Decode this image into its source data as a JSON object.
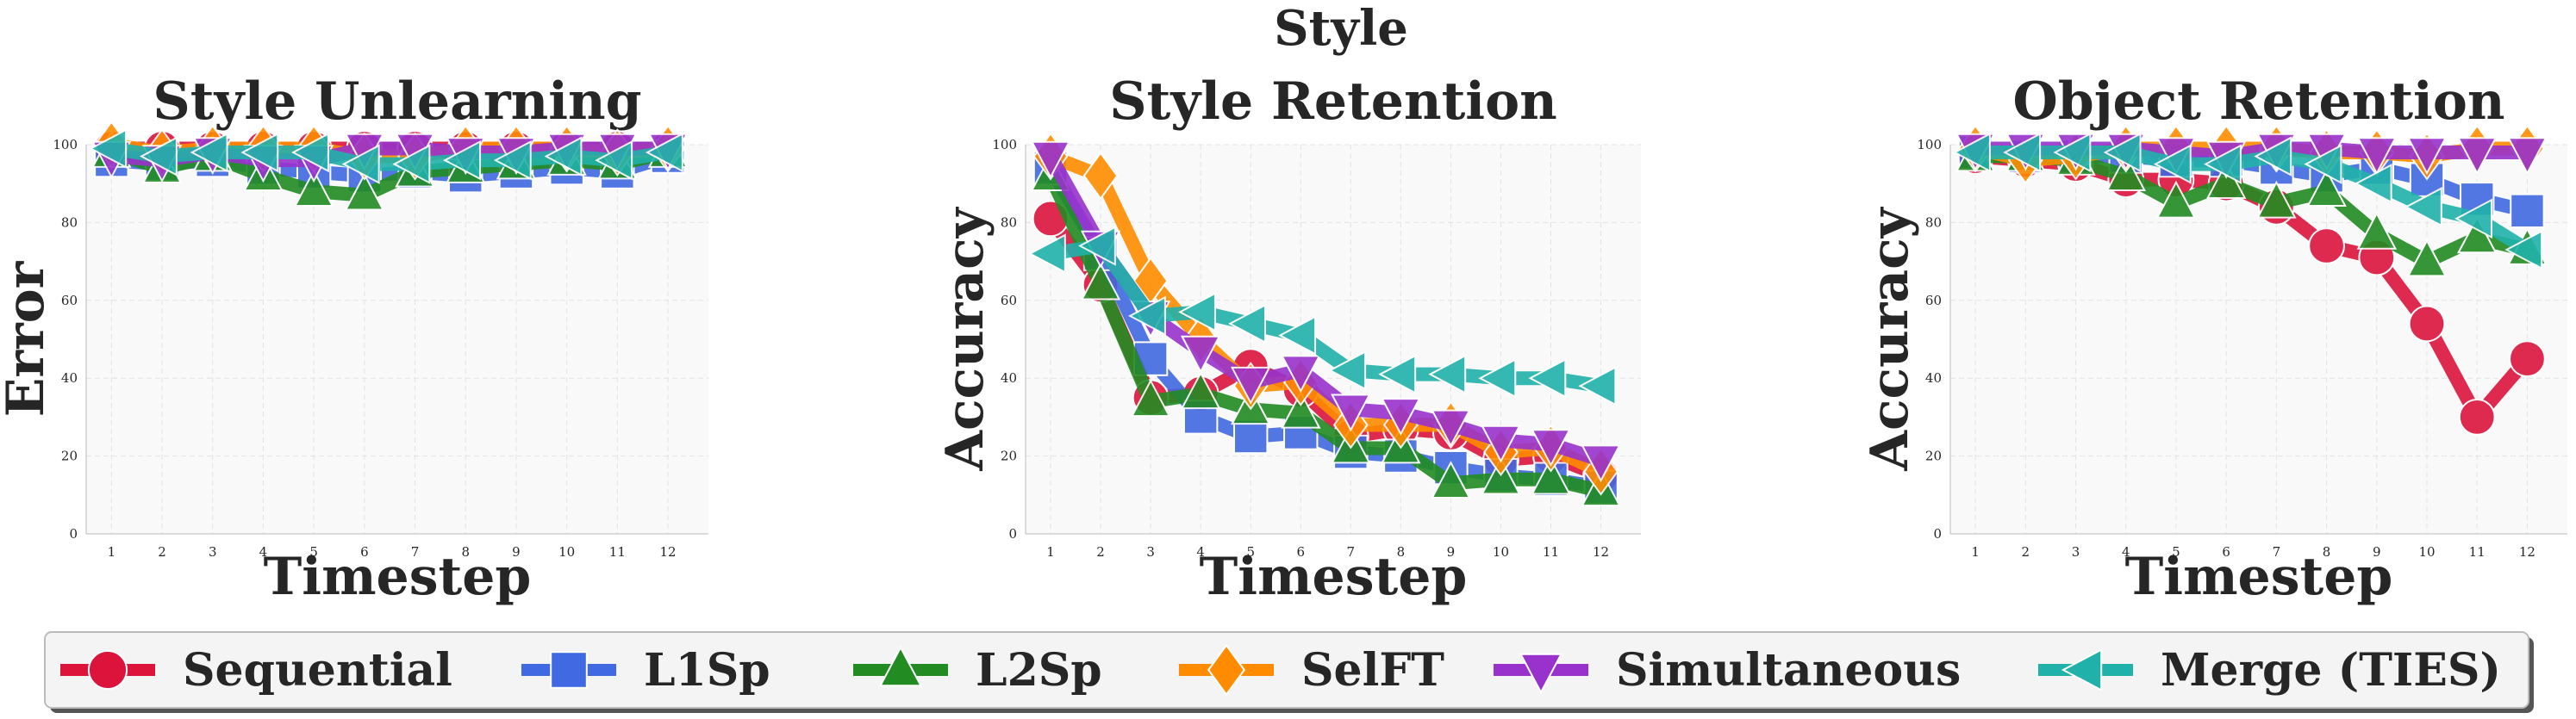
{
  "chart_data": {
    "suptitle": "Style",
    "legend": {
      "placement": "bottom",
      "entries": [
        "Sequential",
        "L1Sp",
        "L2Sp",
        "SelFT",
        "Simultaneous",
        "Merge (TIES)"
      ]
    },
    "series_styles": [
      {
        "name": "Sequential",
        "color": "#DC143C",
        "marker": "circle"
      },
      {
        "name": "L1Sp",
        "color": "#4169E1",
        "marker": "square"
      },
      {
        "name": "L2Sp",
        "color": "#228B22",
        "marker": "triangle-up"
      },
      {
        "name": "SelFT",
        "color": "#FF8C00",
        "marker": "diamond"
      },
      {
        "name": "Simultaneous",
        "color": "#9932CC",
        "marker": "triangle-down"
      },
      {
        "name": "Merge (TIES)",
        "color": "#20B2AA",
        "marker": "triangle-left"
      }
    ],
    "panels": [
      {
        "type": "line",
        "title": "Style Unlearning",
        "xlabel": "Timestep",
        "ylabel": "Error",
        "x": [
          1,
          2,
          3,
          4,
          5,
          6,
          7,
          8,
          9,
          10,
          11,
          12
        ],
        "ylim": [
          0,
          100
        ],
        "yticks": [
          0,
          20,
          40,
          60,
          80,
          100
        ],
        "grid": true,
        "series": [
          {
            "name": "Sequential",
            "values": [
              99,
              99,
              99,
              99,
              99,
              99,
              99,
              99,
              99,
              99,
              99,
              99
            ]
          },
          {
            "name": "L1Sp",
            "values": [
              96,
              95,
              96,
              94,
              93,
              92,
              93,
              92,
              93,
              94,
              93,
              97
            ]
          },
          {
            "name": "L2Sp",
            "values": [
              98,
              94,
              97,
              92,
              88,
              87,
              93,
              94,
              95,
              96,
              95,
              98
            ]
          },
          {
            "name": "SelFT",
            "values": [
              100,
              98,
              99,
              99,
              99,
              97,
              97,
              99,
              99,
              99,
              98,
              99
            ]
          },
          {
            "name": "Simultaneous",
            "values": [
              97,
              96,
              98,
              96,
              96,
              99,
              99,
              98,
              98,
              99,
              99,
              99
            ]
          },
          {
            "name": "Merge (TIES)",
            "values": [
              99,
              97,
              98,
              98,
              98,
              95,
              95,
              96,
              96,
              97,
              96,
              98
            ]
          }
        ]
      },
      {
        "type": "line",
        "title": "Style Retention",
        "xlabel": "Timestep",
        "ylabel": "Accuracy",
        "x": [
          1,
          2,
          3,
          4,
          5,
          6,
          7,
          8,
          9,
          10,
          11,
          12
        ],
        "ylim": [
          0,
          100
        ],
        "yticks": [
          0,
          20,
          40,
          60,
          80,
          100
        ],
        "grid": true,
        "series": [
          {
            "name": "Sequential",
            "values": [
              81,
              64,
              35,
              36,
              43,
              37,
              25,
              27,
              26,
              19,
              20,
              15
            ]
          },
          {
            "name": "L1Sp",
            "values": [
              94,
              72,
              45,
              30,
              25,
              26,
              21,
              20,
              17,
              15,
              14,
              12
            ]
          },
          {
            "name": "L2Sp",
            "values": [
              92,
              64,
              34,
              36,
              32,
              31,
              22,
              22,
              13,
              14,
              14,
              11
            ]
          },
          {
            "name": "SelFT",
            "values": [
              97,
              92,
              65,
              50,
              38,
              39,
              28,
              28,
              28,
              21,
              22,
              16
            ]
          },
          {
            "name": "Simultaneous",
            "values": [
              97,
              74,
              56,
              47,
              39,
              42,
              32,
              31,
              28,
              24,
              23,
              19
            ]
          },
          {
            "name": "Merge (TIES)",
            "values": [
              72,
              74,
              56,
              57,
              54,
              51,
              42,
              41,
              41,
              40,
              40,
              38
            ]
          }
        ]
      },
      {
        "type": "line",
        "title": "Object Retention",
        "xlabel": "Timestep",
        "ylabel": "Accuracy",
        "x": [
          1,
          2,
          3,
          4,
          5,
          6,
          7,
          8,
          9,
          10,
          11,
          12
        ],
        "ylim": [
          0,
          100
        ],
        "yticks": [
          0,
          20,
          40,
          60,
          80,
          100
        ],
        "grid": true,
        "series": [
          {
            "name": "Sequential",
            "values": [
              97,
              96,
              95,
              91,
              91,
              90,
              84,
              74,
              71,
              54,
              30,
              45
            ]
          },
          {
            "name": "L1Sp",
            "values": [
              98,
              97,
              97,
              97,
              96,
              96,
              94,
              92,
              94,
              91,
              86,
              83
            ]
          },
          {
            "name": "L2Sp",
            "values": [
              97,
              97,
              96,
              92,
              85,
              90,
              85,
              88,
              77,
              70,
              76,
              73
            ]
          },
          {
            "name": "SelFT",
            "values": [
              99,
              96,
              97,
              99,
              99,
              99,
              99,
              98,
              98,
              97,
              99,
              99
            ]
          },
          {
            "name": "Simultaneous",
            "values": [
              99,
              99,
              99,
              99,
              98,
              97,
              99,
              99,
              98,
              98,
              98,
              98
            ]
          },
          {
            "name": "Merge (TIES)",
            "values": [
              98,
              98,
              98,
              98,
              95,
              95,
              97,
              95,
              90,
              84,
              81,
              73
            ]
          }
        ]
      }
    ]
  }
}
